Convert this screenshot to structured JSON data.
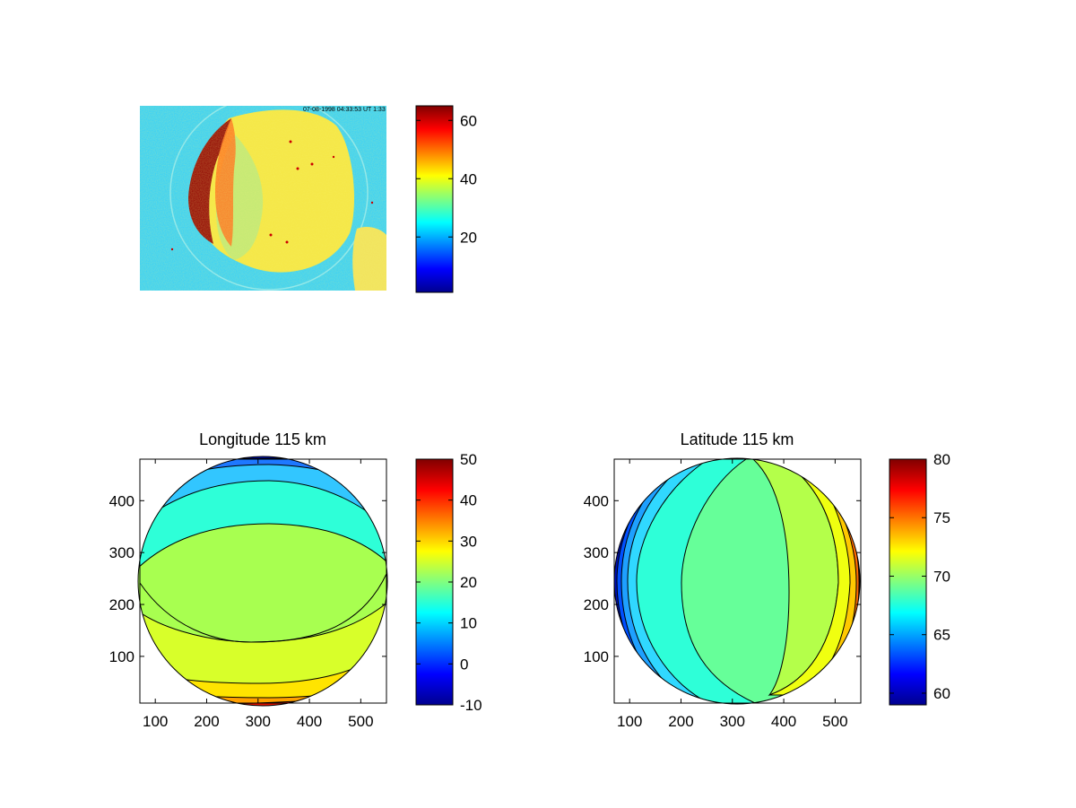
{
  "chart_data": [
    {
      "type": "heatmap",
      "title": "",
      "description_image": "all-sky camera image, bright circular region on cyan background",
      "colorbar": {
        "ticks": [
          20,
          40,
          60
        ],
        "range": [
          1,
          65
        ],
        "colormap": "jet"
      },
      "overlay_text": "07-08-1998 04:33:53 UT 1:33"
    },
    {
      "type": "heatmap",
      "title": "Longitude 115 km",
      "xticks": [
        100,
        200,
        300,
        400,
        500
      ],
      "yticks": [
        100,
        200,
        300,
        400
      ],
      "xlim": [
        70,
        550
      ],
      "ylim": [
        10,
        480
      ],
      "contour_levels": [
        -10,
        -5,
        0,
        5,
        10,
        15,
        20,
        25,
        30,
        35,
        40,
        45,
        50
      ],
      "colorbar": {
        "ticks": [
          -10,
          0,
          10,
          20,
          30,
          40,
          50
        ],
        "range": [
          -10,
          50
        ],
        "colormap": "jet"
      }
    },
    {
      "type": "heatmap",
      "title": "Latitude 115 km",
      "xticks": [
        100,
        200,
        300,
        400,
        500
      ],
      "yticks": [
        100,
        200,
        300,
        400
      ],
      "xlim": [
        70,
        550
      ],
      "ylim": [
        10,
        480
      ],
      "contour_levels": [
        60,
        62,
        64,
        66,
        68,
        70,
        72,
        74,
        76,
        78,
        80
      ],
      "colorbar": {
        "ticks": [
          60,
          65,
          70,
          75,
          80
        ],
        "range": [
          59,
          80
        ],
        "colormap": "jet"
      }
    }
  ],
  "colors": {
    "jet": [
      "#00008f",
      "#0000ff",
      "#00ffff",
      "#ffff00",
      "#ff0000",
      "#800000"
    ]
  }
}
